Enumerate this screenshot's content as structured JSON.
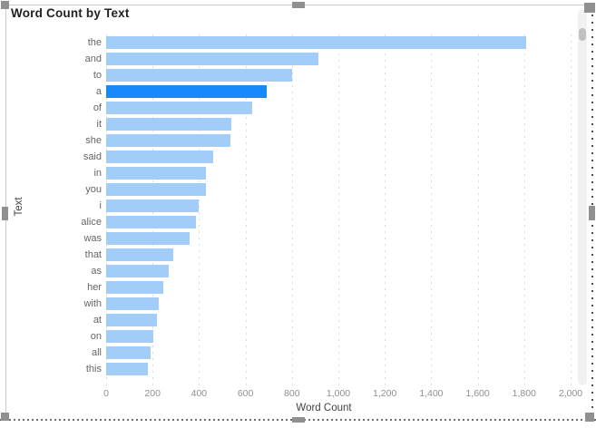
{
  "visual": {
    "title": "Word Count by Text",
    "selected": true
  },
  "chart_data": {
    "type": "bar",
    "orientation": "horizontal",
    "title": "Word Count by Text",
    "xlabel": "Word Count",
    "ylabel": "Text",
    "categories": [
      "the",
      "and",
      "to",
      "a",
      "of",
      "it",
      "she",
      "said",
      "in",
      "you",
      "i",
      "alice",
      "was",
      "that",
      "as",
      "her",
      "with",
      "at",
      "on",
      "all",
      "this"
    ],
    "values": [
      1810,
      915,
      800,
      690,
      630,
      540,
      535,
      460,
      431,
      429,
      400,
      385,
      358,
      288,
      270,
      246,
      227,
      218,
      202,
      193,
      181
    ],
    "highlight_index": 3,
    "highlighted_category": "a",
    "xlim": [
      0,
      2000
    ],
    "x_ticks": [
      "0",
      "200",
      "400",
      "600",
      "800",
      "1,000",
      "1,200",
      "1,400",
      "1,600",
      "1,800",
      "2,000"
    ],
    "x_tick_values": [
      0,
      200,
      400,
      600,
      800,
      1000,
      1200,
      1400,
      1600,
      1800,
      2000
    ],
    "grid": true,
    "legend": "none",
    "colors": {
      "bar": "#a3cdf9",
      "bar_highlight": "#1689fc"
    }
  }
}
